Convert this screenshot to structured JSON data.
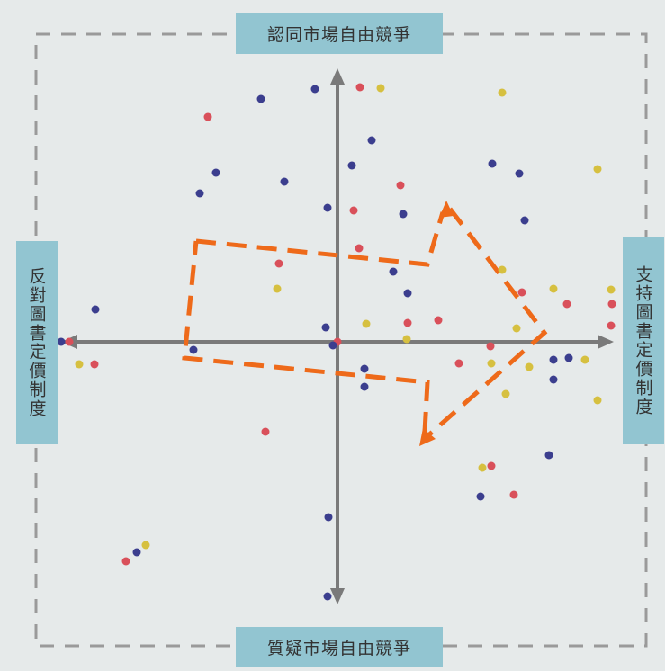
{
  "labels": {
    "top": "認同市場自由競爭",
    "bottom": "質疑市場自由競爭",
    "left": "反對圖書定價制度",
    "right": "支持圖書定價制度"
  }
}
